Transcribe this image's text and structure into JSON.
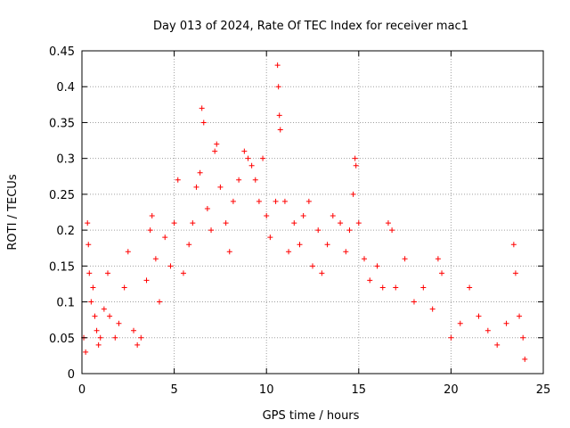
{
  "chart_data": {
    "type": "scatter",
    "title": "Day 013 of 2024, Rate Of TEC Index for receiver mac1",
    "xlabel": "GPS time / hours",
    "ylabel": "ROTI / TECUs",
    "xlim": [
      0,
      25
    ],
    "ylim": [
      0,
      0.45
    ],
    "xticks": [
      0,
      5,
      10,
      15,
      20,
      25
    ],
    "xtick_labels": [
      "0",
      "5",
      "10",
      "15",
      "20",
      "25"
    ],
    "yticks": [
      0,
      0.05,
      0.1,
      0.15,
      0.2,
      0.25,
      0.3,
      0.35,
      0.4,
      0.45
    ],
    "ytick_labels": [
      "0",
      "0.05",
      "0.1",
      "0.15",
      "0.2",
      "0.25",
      "0.3",
      "0.35",
      "0.4",
      "0.45"
    ],
    "grid": true,
    "marker": "plus",
    "color": "#ff0000",
    "series": [
      {
        "points": [
          [
            0.1,
            0.05
          ],
          [
            0.2,
            0.03
          ],
          [
            0.3,
            0.21
          ],
          [
            0.35,
            0.18
          ],
          [
            0.4,
            0.14
          ],
          [
            0.5,
            0.1
          ],
          [
            0.6,
            0.12
          ],
          [
            0.7,
            0.08
          ],
          [
            0.8,
            0.06
          ],
          [
            0.9,
            0.04
          ],
          [
            1.0,
            0.05
          ],
          [
            1.2,
            0.09
          ],
          [
            1.4,
            0.14
          ],
          [
            1.5,
            0.08
          ],
          [
            1.8,
            0.05
          ],
          [
            2.0,
            0.07
          ],
          [
            2.3,
            0.12
          ],
          [
            2.5,
            0.17
          ],
          [
            2.8,
            0.06
          ],
          [
            3.0,
            0.04
          ],
          [
            3.2,
            0.05
          ],
          [
            3.5,
            0.13
          ],
          [
            3.7,
            0.2
          ],
          [
            3.8,
            0.22
          ],
          [
            4.0,
            0.16
          ],
          [
            4.2,
            0.1
          ],
          [
            4.5,
            0.19
          ],
          [
            4.8,
            0.15
          ],
          [
            5.0,
            0.21
          ],
          [
            5.2,
            0.27
          ],
          [
            5.5,
            0.14
          ],
          [
            5.8,
            0.18
          ],
          [
            6.0,
            0.21
          ],
          [
            6.2,
            0.26
          ],
          [
            6.4,
            0.28
          ],
          [
            6.5,
            0.37
          ],
          [
            6.6,
            0.35
          ],
          [
            6.8,
            0.23
          ],
          [
            7.0,
            0.2
          ],
          [
            7.2,
            0.31
          ],
          [
            7.3,
            0.32
          ],
          [
            7.5,
            0.26
          ],
          [
            7.8,
            0.21
          ],
          [
            8.0,
            0.17
          ],
          [
            8.2,
            0.24
          ],
          [
            8.5,
            0.27
          ],
          [
            8.8,
            0.31
          ],
          [
            9.0,
            0.3
          ],
          [
            9.2,
            0.29
          ],
          [
            9.4,
            0.27
          ],
          [
            9.6,
            0.24
          ],
          [
            9.8,
            0.3
          ],
          [
            10.0,
            0.22
          ],
          [
            10.2,
            0.19
          ],
          [
            10.5,
            0.24
          ],
          [
            10.6,
            0.43
          ],
          [
            10.65,
            0.4
          ],
          [
            10.7,
            0.36
          ],
          [
            10.75,
            0.34
          ],
          [
            11.0,
            0.24
          ],
          [
            11.2,
            0.17
          ],
          [
            11.5,
            0.21
          ],
          [
            11.8,
            0.18
          ],
          [
            12.0,
            0.22
          ],
          [
            12.3,
            0.24
          ],
          [
            12.5,
            0.15
          ],
          [
            12.8,
            0.2
          ],
          [
            13.0,
            0.14
          ],
          [
            13.3,
            0.18
          ],
          [
            13.6,
            0.22
          ],
          [
            14.0,
            0.21
          ],
          [
            14.3,
            0.17
          ],
          [
            14.5,
            0.2
          ],
          [
            14.7,
            0.25
          ],
          [
            14.8,
            0.3
          ],
          [
            14.85,
            0.29
          ],
          [
            15.0,
            0.21
          ],
          [
            15.3,
            0.16
          ],
          [
            15.6,
            0.13
          ],
          [
            16.0,
            0.15
          ],
          [
            16.3,
            0.12
          ],
          [
            16.6,
            0.21
          ],
          [
            16.8,
            0.2
          ],
          [
            17.0,
            0.12
          ],
          [
            17.5,
            0.16
          ],
          [
            18.0,
            0.1
          ],
          [
            18.5,
            0.12
          ],
          [
            19.0,
            0.09
          ],
          [
            19.3,
            0.16
          ],
          [
            19.5,
            0.14
          ],
          [
            20.0,
            0.05
          ],
          [
            20.5,
            0.07
          ],
          [
            21.0,
            0.12
          ],
          [
            21.5,
            0.08
          ],
          [
            22.0,
            0.06
          ],
          [
            22.5,
            0.04
          ],
          [
            23.0,
            0.07
          ],
          [
            23.4,
            0.18
          ],
          [
            23.5,
            0.14
          ],
          [
            23.7,
            0.08
          ],
          [
            23.9,
            0.05
          ],
          [
            24.0,
            0.02
          ]
        ]
      }
    ]
  }
}
